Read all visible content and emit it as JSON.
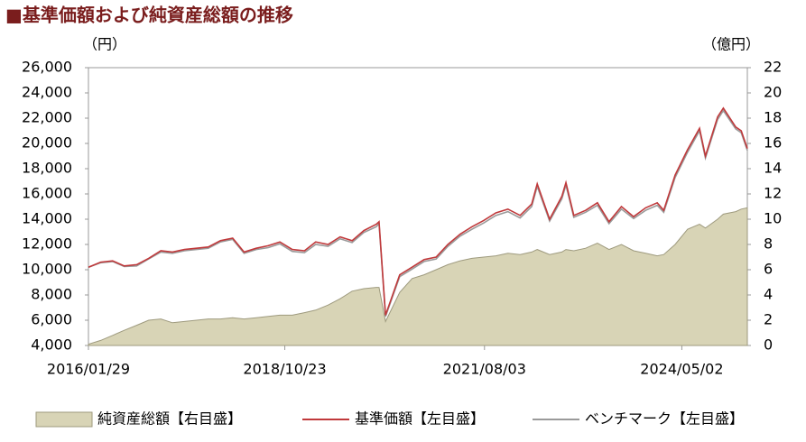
{
  "chart_data": {
    "type": "line",
    "title": "■基準価額および純資産総額の推移",
    "y_label": "（円）",
    "y2_label": "（億円）",
    "x": [
      "2016/01/29",
      "2016/03/31",
      "2016/05/31",
      "2016/07/29",
      "2016/09/30",
      "2016/11/30",
      "2017/01/31",
      "2017/03/31",
      "2017/05/31",
      "2017/07/31",
      "2017/09/29",
      "2017/11/30",
      "2018/01/31",
      "2018/03/30",
      "2018/05/31",
      "2018/07/31",
      "2018/09/28",
      "2018/11/30",
      "2019/01/31",
      "2019/03/29",
      "2019/05/31",
      "2019/07/31",
      "2019/09/30",
      "2019/11/29",
      "2020/01/31",
      "2020/02/14",
      "2020/03/18",
      "2020/05/29",
      "2020/07/31",
      "2020/09/30",
      "2020/11/30",
      "2021/01/29",
      "2021/03/31",
      "2021/05/31",
      "2021/07/30",
      "2021/09/30",
      "2021/11/30",
      "2022/01/31",
      "2022/03/31",
      "2022/04/28",
      "2022/06/30",
      "2022/08/31",
      "2022/09/21",
      "2022/10/31",
      "2022/12/30",
      "2023/02/28",
      "2023/04/28",
      "2023/06/30",
      "2023/08/31",
      "2023/10/31",
      "2023/12/29",
      "2024/01/31",
      "2024/03/29",
      "2024/05/31",
      "2024/07/31",
      "2024/08/30",
      "2024/10/31",
      "2024/11/29",
      "2025/01/31",
      "2025/02/28",
      "2025/03/31"
    ],
    "series": [
      {
        "name": "純資産総額【右目盛】",
        "type": "area",
        "axis": "y2",
        "color": "#d8d4b6",
        "stroke": "#9e9a7e",
        "values": [
          0.1,
          0.4,
          0.8,
          1.2,
          1.6,
          2.0,
          2.1,
          1.8,
          1.9,
          2.0,
          2.1,
          2.1,
          2.2,
          2.1,
          2.2,
          2.3,
          2.4,
          2.4,
          2.6,
          2.8,
          3.2,
          3.7,
          4.3,
          4.5,
          4.6,
          4.6,
          1.9,
          4.2,
          5.3,
          5.6,
          6.0,
          6.4,
          6.7,
          6.9,
          7.0,
          7.1,
          7.3,
          7.2,
          7.4,
          7.6,
          7.2,
          7.4,
          7.6,
          7.5,
          7.7,
          8.1,
          7.6,
          8.0,
          7.5,
          7.3,
          7.1,
          7.2,
          8.0,
          9.2,
          9.6,
          9.3,
          10.0,
          10.4,
          10.6,
          10.8,
          10.9
        ]
      },
      {
        "name": "基準価額【左目盛】",
        "type": "line",
        "color": "#c0393b",
        "values": [
          10200,
          10600,
          10700,
          10300,
          10400,
          10900,
          11500,
          11400,
          11600,
          11700,
          11800,
          12300,
          12500,
          11400,
          11700,
          11900,
          12200,
          11600,
          11500,
          12200,
          12000,
          12600,
          12300,
          13100,
          13600,
          13800,
          6400,
          9600,
          10200,
          10800,
          11000,
          12000,
          12800,
          13400,
          13900,
          14500,
          14800,
          14300,
          15200,
          16800,
          14000,
          15800,
          16900,
          14300,
          14700,
          15300,
          13800,
          15000,
          14200,
          14900,
          15300,
          14700,
          17500,
          19500,
          21200,
          19000,
          22100,
          22800,
          21300,
          21000,
          19600
        ]
      },
      {
        "name": "ベンチマーク【左目盛】",
        "type": "line",
        "color": "#9a9a9a",
        "values": [
          10200,
          10550,
          10650,
          10250,
          10300,
          10850,
          11400,
          11300,
          11500,
          11600,
          11700,
          12200,
          12400,
          11300,
          11600,
          11750,
          12050,
          11450,
          11350,
          12000,
          11850,
          12450,
          12150,
          12950,
          13400,
          13650,
          6300,
          9450,
          10050,
          10650,
          10850,
          11850,
          12650,
          13200,
          13700,
          14300,
          14600,
          14100,
          15000,
          16600,
          13850,
          15600,
          16700,
          14150,
          14550,
          15100,
          13650,
          14800,
          14050,
          14700,
          15100,
          14550,
          17300,
          19300,
          21000,
          18850,
          21900,
          22600,
          21150,
          20850,
          19450
        ]
      }
    ],
    "xlim": [
      "2016/01/29",
      "2025/03/31"
    ],
    "xticks": [
      "2016/01/29",
      "2018/10/23",
      "2021/08/03",
      "2024/05/02"
    ],
    "ylim": [
      4000,
      26000
    ],
    "yticks": [
      {
        "value": 4000,
        "label": "4,000"
      },
      {
        "value": 6000,
        "label": "6,000"
      },
      {
        "value": 8000,
        "label": "8,000"
      },
      {
        "value": 10000,
        "label": "10,000"
      },
      {
        "value": 12000,
        "label": "12,000"
      },
      {
        "value": 14000,
        "label": "14,000"
      },
      {
        "value": 16000,
        "label": "16,000"
      },
      {
        "value": 18000,
        "label": "18,000"
      },
      {
        "value": 20000,
        "label": "20,000"
      },
      {
        "value": 22000,
        "label": "22,000"
      },
      {
        "value": 24000,
        "label": "24,000"
      },
      {
        "value": 26000,
        "label": "26,000"
      }
    ],
    "y2lim": [
      0,
      22
    ],
    "y2ticks": [
      0,
      2,
      4,
      6,
      8,
      10,
      12,
      14,
      16,
      18,
      20,
      22
    ],
    "grid": false
  }
}
